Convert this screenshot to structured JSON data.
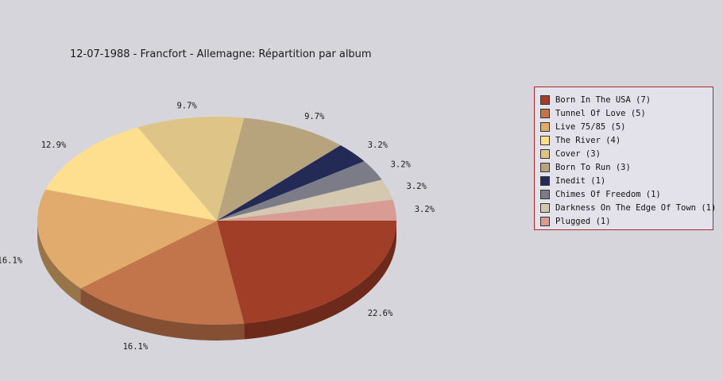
{
  "chart_data": {
    "type": "pie",
    "title": "12-07-1988 - Francfort - Allemagne:  Répartition par album",
    "legend_position": "right",
    "slices": [
      {
        "label": "Born In The USA (7)",
        "name": "Born In The USA",
        "value": 7,
        "percent_label": "22.6%",
        "color": "#a03e28"
      },
      {
        "label": "Tunnel Of Love (5)",
        "name": "Tunnel Of Love",
        "value": 5,
        "percent_label": "16.1%",
        "color": "#c2744a"
      },
      {
        "label": "Live 75/85 (5)",
        "name": "Live 75/85",
        "value": 5,
        "percent_label": "16.1%",
        "color": "#e0ab6c"
      },
      {
        "label": "The River (4)",
        "name": "The River",
        "value": 4,
        "percent_label": "12.9%",
        "color": "#fedf8f"
      },
      {
        "label": "Cover (3)",
        "name": "Cover",
        "value": 3,
        "percent_label": "9.7%",
        "color": "#dec587"
      },
      {
        "label": "Born To Run (3)",
        "name": "Born To Run",
        "value": 3,
        "percent_label": "9.7%",
        "color": "#b8a47c"
      },
      {
        "label": "Inedit (1)",
        "name": "Inedit",
        "value": 1,
        "percent_label": "3.2%",
        "color": "#232a55"
      },
      {
        "label": "Chimes Of Freedom (1)",
        "name": "Chimes Of Freedom",
        "value": 1,
        "percent_label": "3.2%",
        "color": "#7c7b88"
      },
      {
        "label": "Darkness On The Edge Of Town (1)",
        "name": "Darkness On The Edge Of Town",
        "value": 1,
        "percent_label": "3.2%",
        "color": "#d4c8b0"
      },
      {
        "label": "Plugged (1)",
        "name": "Plugged",
        "value": 1,
        "percent_label": "3.2%",
        "color": "#d89c94"
      }
    ]
  }
}
